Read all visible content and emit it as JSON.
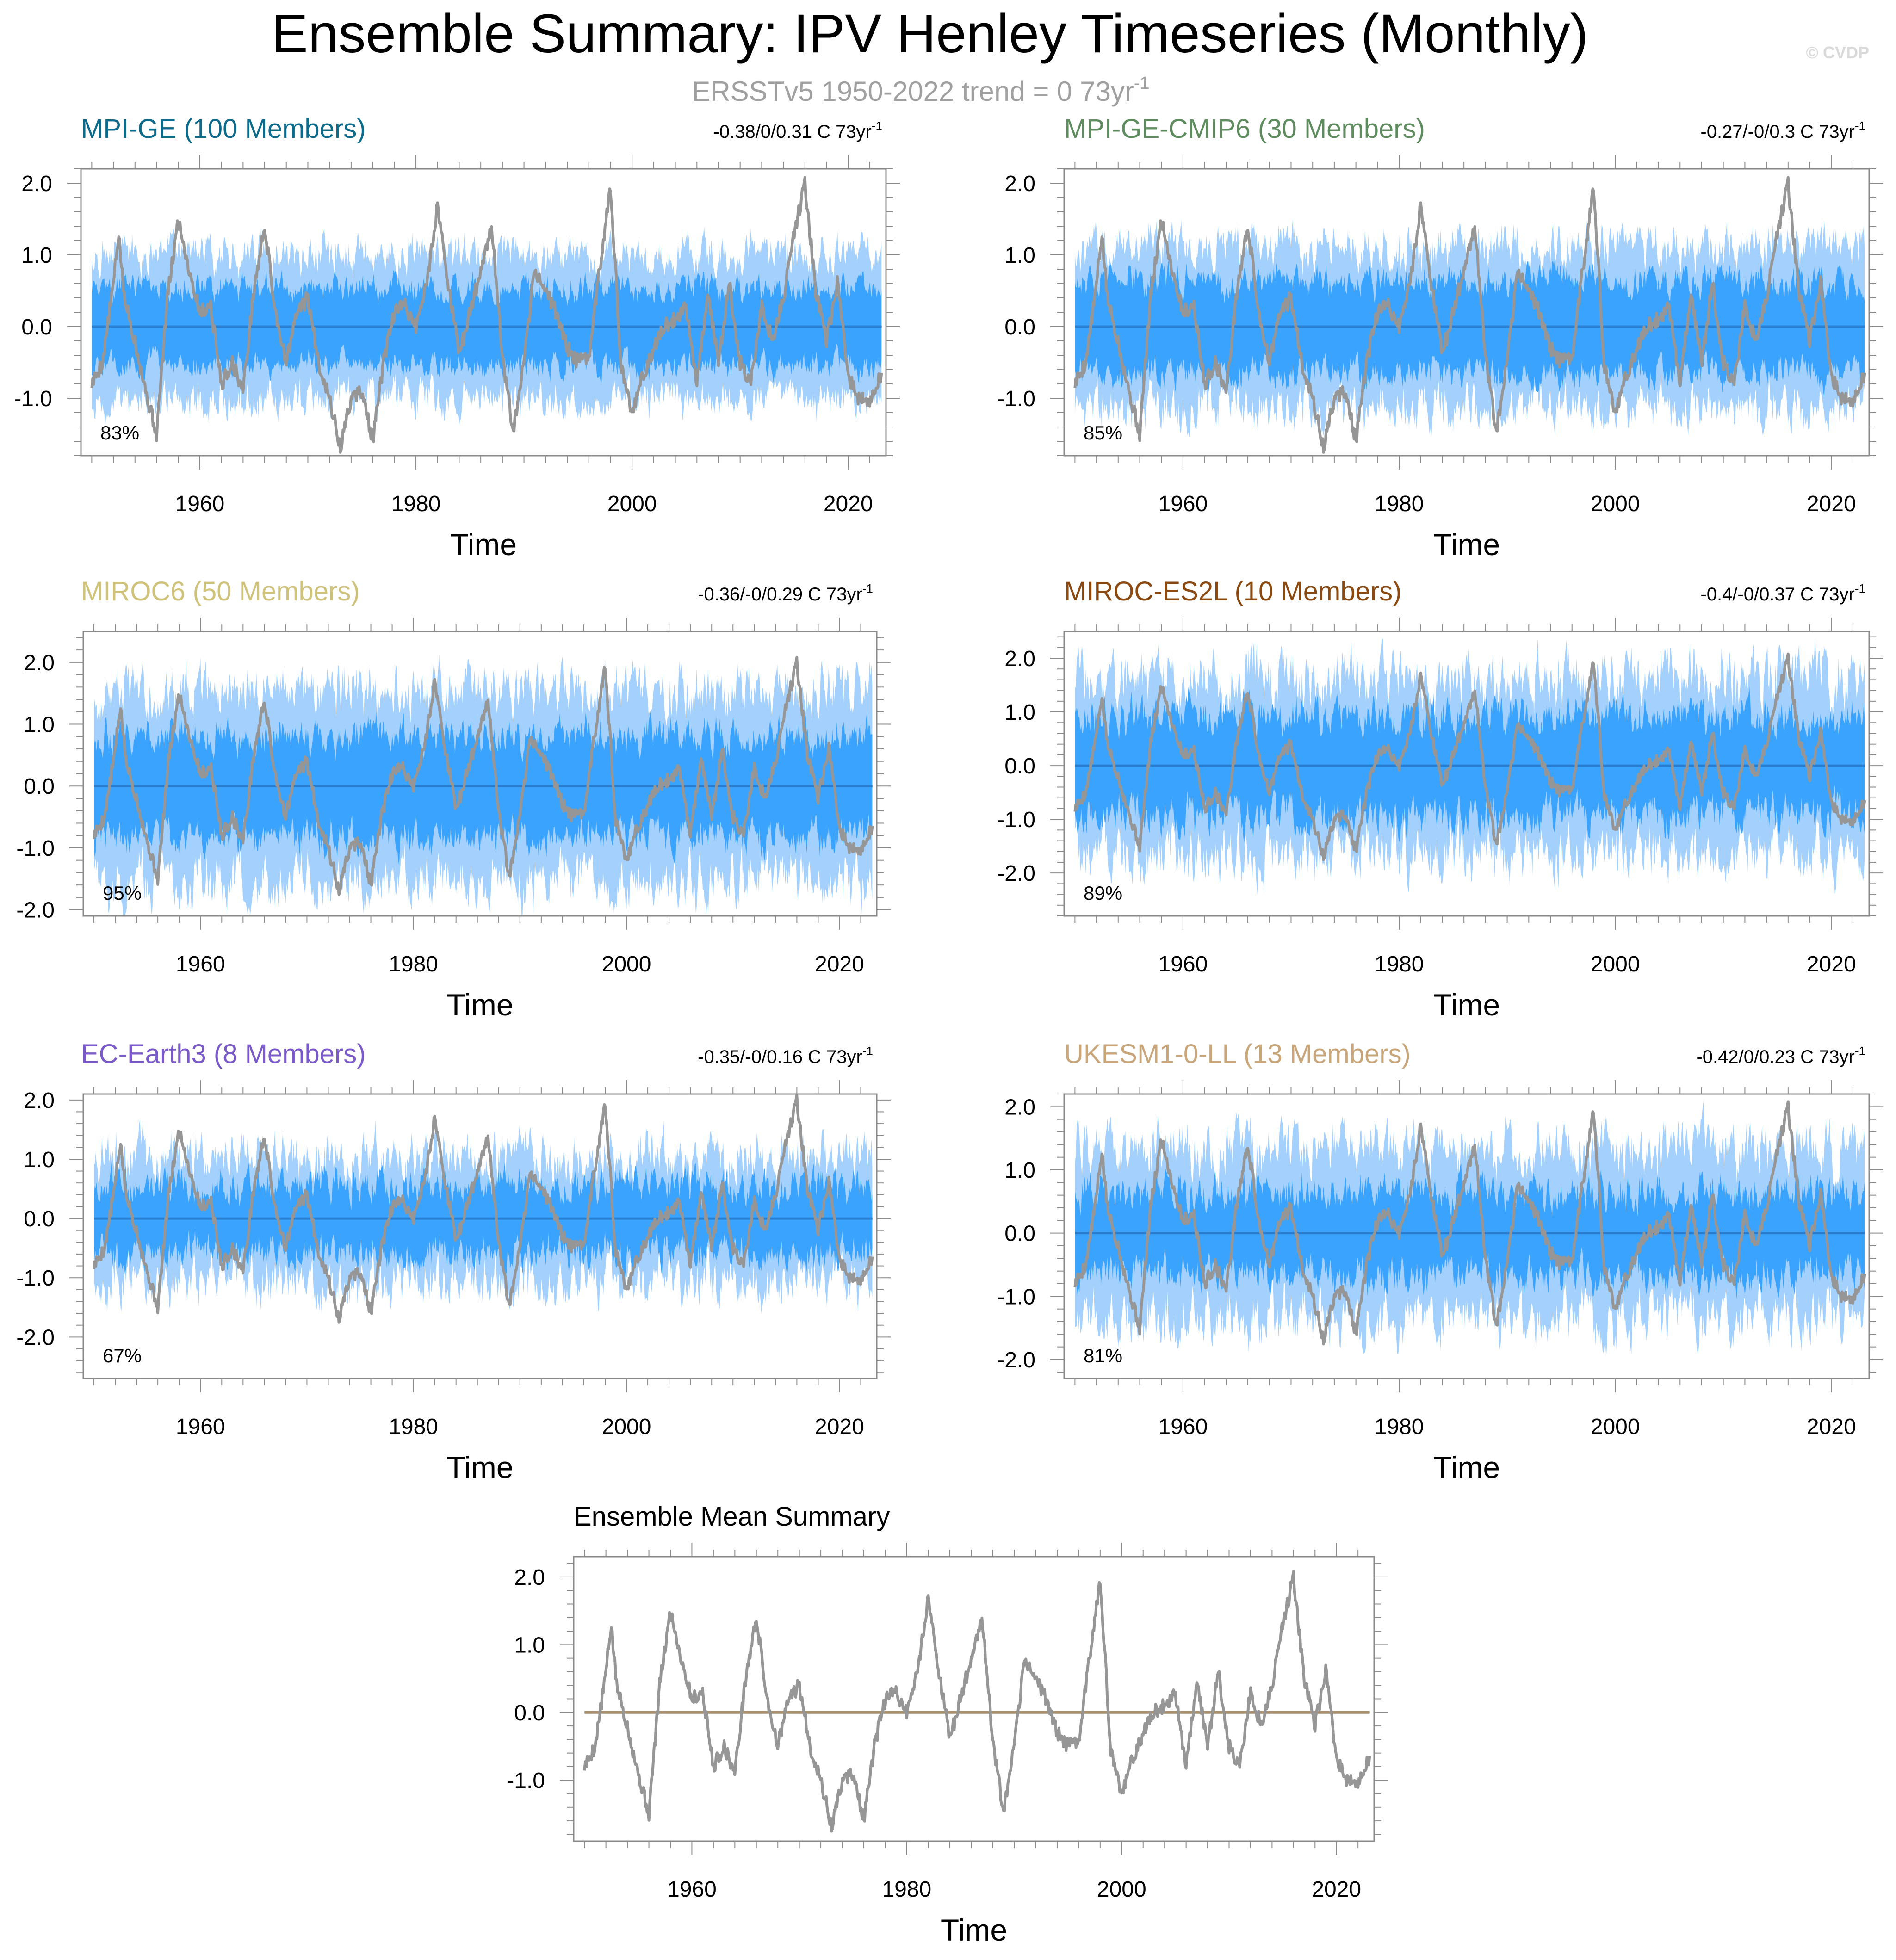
{
  "page": {
    "title": "Ensemble Summary: IPV Henley Timeseries (Monthly)",
    "subtitle": "ERSSTv5 1950-2022 trend = 0 73yr",
    "subtitle_sup": "-1",
    "credit": "© CVDP"
  },
  "colors": {
    "outer_band": "#a3d0fc",
    "inner_band": "#3aa3fd",
    "ensemble_mean_line": "#2a7fd0",
    "observed_line": "#969696",
    "summary_mean_line": "#a88e6a",
    "axis": "#8a8a8a"
  },
  "chart_data": [
    {
      "type": "area",
      "name": "panel-mpi-ge",
      "title": "MPI-GE (100 Members)",
      "title_color": "#0e6a8a",
      "trend_text": "-0.38/0/0.31 C 73yr",
      "trend_sup": "-1",
      "percent_label": "83%",
      "xlabel": "Time",
      "xlim": [
        1949,
        2023.5
      ],
      "ylim": [
        -1.8,
        2.2
      ],
      "yticks": [
        -1.0,
        0.0,
        1.0,
        2.0
      ],
      "ytick_labels": [
        "-1.0",
        "0.0",
        "1.0",
        "2.0"
      ],
      "xticks": [
        1960,
        1980,
        2000,
        2020
      ],
      "xtick_labels": [
        "1960",
        "1980",
        "2000",
        "2020"
      ],
      "outer_half_width": 0.95,
      "inner_half_width": 0.5,
      "band_noise": 0.25,
      "seed": 11
    },
    {
      "type": "area",
      "name": "panel-mpi-ge-cmip6",
      "title": "MPI-GE-CMIP6 (30 Members)",
      "title_color": "#5f8c5f",
      "trend_text": "-0.27/-0/0.3 C 73yr",
      "trend_sup": "-1",
      "percent_label": "85%",
      "xlabel": "Time",
      "xlim": [
        1949,
        2023.5
      ],
      "ylim": [
        -1.8,
        2.2
      ],
      "yticks": [
        -1.0,
        0.0,
        1.0,
        2.0
      ],
      "ytick_labels": [
        "-1.0",
        "0.0",
        "1.0",
        "2.0"
      ],
      "xticks": [
        1960,
        1980,
        2000,
        2020
      ],
      "xtick_labels": [
        "1960",
        "1980",
        "2000",
        "2020"
      ],
      "outer_half_width": 1.05,
      "inner_half_width": 0.6,
      "band_noise": 0.3,
      "seed": 23
    },
    {
      "type": "area",
      "name": "panel-miroc6",
      "title": "MIROC6 (50 Members)",
      "title_color": "#cfc27a",
      "trend_text": "-0.36/-0/0.29 C 73yr",
      "trend_sup": "-1",
      "percent_label": "95%",
      "xlabel": "Time",
      "xlim": [
        1949,
        2023.5
      ],
      "ylim": [
        -2.1,
        2.5
      ],
      "yticks": [
        -2.0,
        -1.0,
        0.0,
        1.0,
        2.0
      ],
      "ytick_labels": [
        "-2.0",
        "-1.0",
        "0.0",
        "1.0",
        "2.0"
      ],
      "xticks": [
        1960,
        1980,
        2000,
        2020
      ],
      "xtick_labels": [
        "1960",
        "1980",
        "2000",
        "2020"
      ],
      "outer_half_width": 1.45,
      "inner_half_width": 0.75,
      "band_noise": 0.4,
      "seed": 37
    },
    {
      "type": "area",
      "name": "panel-miroc-es2l",
      "title": "MIROC-ES2L (10 Members)",
      "title_color": "#8a4a12",
      "trend_text": "-0.4/-0/0.37 C 73yr",
      "trend_sup": "-1",
      "percent_label": "89%",
      "xlabel": "Time",
      "xlim": [
        1949,
        2023.5
      ],
      "ylim": [
        -2.8,
        2.5
      ],
      "yticks": [
        -2.0,
        -1.0,
        0.0,
        1.0,
        2.0
      ],
      "ytick_labels": [
        "-2.0",
        "-1.0",
        "0.0",
        "1.0",
        "2.0"
      ],
      "xticks": [
        1960,
        1980,
        2000,
        2020
      ],
      "xtick_labels": [
        "1960",
        "1980",
        "2000",
        "2020"
      ],
      "outer_half_width": 1.5,
      "inner_half_width": 0.85,
      "band_noise": 0.5,
      "seed": 41
    },
    {
      "type": "area",
      "name": "panel-ec-earth3",
      "title": "EC-Earth3 (8 Members)",
      "title_color": "#7a5ac8",
      "trend_text": "-0.35/-0/0.16 C 73yr",
      "trend_sup": "-1",
      "percent_label": "67%",
      "xlabel": "Time",
      "xlim": [
        1949,
        2023.5
      ],
      "ylim": [
        -2.7,
        2.1
      ],
      "yticks": [
        -2.0,
        -1.0,
        0.0,
        1.0,
        2.0
      ],
      "ytick_labels": [
        "-2.0",
        "-1.0",
        "0.0",
        "1.0",
        "2.0"
      ],
      "xticks": [
        1960,
        1980,
        2000,
        2020
      ],
      "xtick_labels": [
        "1960",
        "1980",
        "2000",
        "2020"
      ],
      "outer_half_width": 0.95,
      "inner_half_width": 0.5,
      "band_noise": 0.4,
      "seed": 53
    },
    {
      "type": "area",
      "name": "panel-ukesm1-0-ll",
      "title": "UKESM1-0-LL (13 Members)",
      "title_color": "#c9a67a",
      "trend_text": "-0.42/0/0.23 C 73yr",
      "trend_sup": "-1",
      "percent_label": "81%",
      "xlabel": "Time",
      "xlim": [
        1949,
        2023.5
      ],
      "ylim": [
        -2.3,
        2.2
      ],
      "yticks": [
        -2.0,
        -1.0,
        0.0,
        1.0,
        2.0
      ],
      "ytick_labels": [
        "-2.0",
        "-1.0",
        "0.0",
        "1.0",
        "2.0"
      ],
      "xticks": [
        1960,
        1980,
        2000,
        2020
      ],
      "xtick_labels": [
        "1960",
        "1980",
        "2000",
        "2020"
      ],
      "outer_half_width": 1.25,
      "inner_half_width": 0.6,
      "band_noise": 0.4,
      "seed": 67
    },
    {
      "type": "line",
      "name": "panel-ensemble-mean",
      "title": "Ensemble Mean Summary",
      "title_color": "#000000",
      "xlabel": "Time",
      "xlim": [
        1949,
        2023.5
      ],
      "ylim": [
        -1.9,
        2.3
      ],
      "yticks": [
        -1.0,
        0.0,
        1.0,
        2.0
      ],
      "ytick_labels": [
        "-1.0",
        "0.0",
        "1.0",
        "2.0"
      ],
      "xticks": [
        1960,
        1980,
        2000,
        2020
      ],
      "xtick_labels": [
        "1960",
        "1980",
        "2000",
        "2020"
      ]
    }
  ],
  "observed_series": {
    "name": "ERSSTv5",
    "x": [
      1950.0,
      1951.0,
      1952.0,
      1952.5,
      1953.0,
      1954.0,
      1955.0,
      1956.0,
      1957.0,
      1958.0,
      1959.0,
      1960.0,
      1961.0,
      1962.0,
      1963.0,
      1964.0,
      1965.0,
      1966.0,
      1967.0,
      1968.0,
      1969.0,
      1970.0,
      1971.0,
      1972.0,
      1973.0,
      1974.0,
      1975.0,
      1976.0,
      1977.0,
      1978.0,
      1979.0,
      1980.0,
      1981.0,
      1982.0,
      1983.0,
      1984.0,
      1985.0,
      1986.0,
      1987.0,
      1988.0,
      1989.0,
      1990.0,
      1991.0,
      1992.0,
      1993.0,
      1994.0,
      1995.0,
      1996.0,
      1997.0,
      1998.0,
      1999.0,
      2000.0,
      2001.0,
      2002.0,
      2003.0,
      2004.0,
      2005.0,
      2006.0,
      2007.0,
      2008.0,
      2009.0,
      2010.0,
      2011.0,
      2012.0,
      2013.0,
      2014.0,
      2015.0,
      2016.0,
      2017.0,
      2018.0,
      2019.0,
      2020.0,
      2021.0,
      2022.0,
      2023.0
    ],
    "y": [
      -0.8,
      -0.5,
      0.6,
      1.3,
      0.4,
      -0.2,
      -0.9,
      -1.5,
      0.4,
      1.5,
      0.8,
      0.2,
      0.3,
      -0.8,
      -0.5,
      -0.9,
      0.5,
      1.4,
      0.2,
      -0.5,
      0.2,
      0.4,
      -0.5,
      -1.0,
      -1.7,
      -1.0,
      -0.9,
      -1.6,
      -0.5,
      0.2,
      0.3,
      0.0,
      0.6,
      1.7,
      0.6,
      -0.4,
      0.2,
      0.8,
      1.4,
      -0.4,
      -1.5,
      -0.5,
      0.8,
      0.5,
      0.2,
      -0.3,
      -0.5,
      -0.4,
      0.8,
      2.0,
      -0.6,
      -1.2,
      -0.7,
      -0.3,
      0.0,
      0.1,
      0.3,
      -0.8,
      0.5,
      -0.5,
      0.6,
      -0.5,
      -0.8,
      0.3,
      -0.2,
      0.4,
      1.3,
      2.0,
      0.5,
      -0.2,
      0.6,
      -0.7,
      -1.0,
      -1.1,
      -0.7
    ]
  }
}
